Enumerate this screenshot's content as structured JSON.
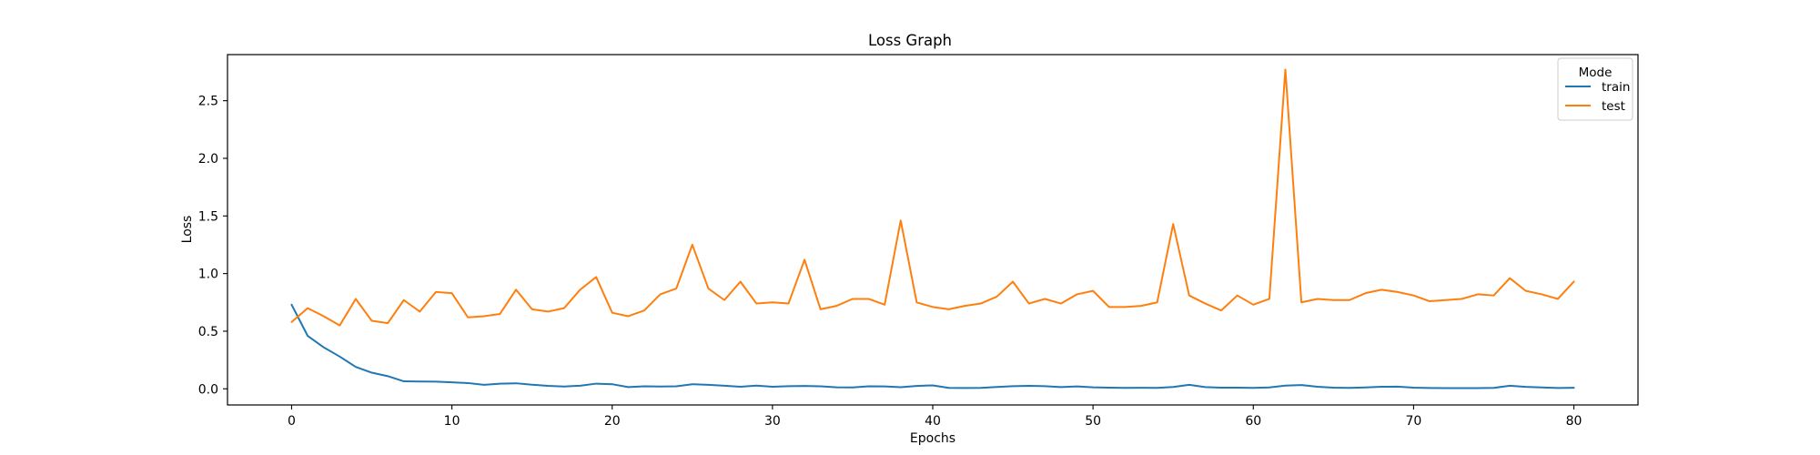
{
  "chart_data": {
    "type": "line",
    "title": "Loss Graph",
    "xlabel": "Epochs",
    "ylabel": "Loss",
    "xlim": [
      -4,
      84
    ],
    "ylim": [
      -0.14,
      2.9
    ],
    "xticks": [
      0,
      10,
      20,
      30,
      40,
      50,
      60,
      70,
      80
    ],
    "xtick_labels": [
      "0",
      "10",
      "20",
      "30",
      "40",
      "50",
      "60",
      "70",
      "80"
    ],
    "yticks": [
      0.0,
      0.5,
      1.0,
      1.5,
      2.0,
      2.5
    ],
    "ytick_labels": [
      "0.0",
      "0.5",
      "1.0",
      "1.5",
      "2.0",
      "2.5"
    ],
    "grid": false,
    "legend": {
      "title": "Mode",
      "placement": "top-right"
    },
    "x": [
      0,
      1,
      2,
      3,
      4,
      5,
      6,
      7,
      8,
      9,
      10,
      11,
      12,
      13,
      14,
      15,
      16,
      17,
      18,
      19,
      20,
      21,
      22,
      23,
      24,
      25,
      26,
      27,
      28,
      29,
      30,
      31,
      32,
      33,
      34,
      35,
      36,
      37,
      38,
      39,
      40,
      41,
      42,
      43,
      44,
      45,
      46,
      47,
      48,
      49,
      50,
      51,
      52,
      53,
      54,
      55,
      56,
      57,
      58,
      59,
      60,
      61,
      62,
      63,
      64,
      65,
      66,
      67,
      68,
      69,
      70,
      71,
      72,
      73,
      74,
      75,
      76,
      77,
      78,
      79,
      80
    ],
    "series": [
      {
        "name": "train",
        "color": "#1f77b4",
        "values": [
          0.73,
          0.46,
          0.36,
          0.28,
          0.19,
          0.14,
          0.11,
          0.065,
          0.063,
          0.062,
          0.056,
          0.05,
          0.035,
          0.045,
          0.048,
          0.036,
          0.026,
          0.02,
          0.027,
          0.045,
          0.04,
          0.015,
          0.022,
          0.02,
          0.022,
          0.04,
          0.035,
          0.027,
          0.018,
          0.028,
          0.018,
          0.023,
          0.025,
          0.022,
          0.013,
          0.012,
          0.022,
          0.021,
          0.014,
          0.025,
          0.03,
          0.008,
          0.007,
          0.008,
          0.016,
          0.023,
          0.026,
          0.023,
          0.015,
          0.021,
          0.013,
          0.01,
          0.008,
          0.009,
          0.008,
          0.016,
          0.035,
          0.015,
          0.01,
          0.01,
          0.008,
          0.012,
          0.028,
          0.033,
          0.018,
          0.01,
          0.008,
          0.012,
          0.018,
          0.019,
          0.01,
          0.007,
          0.006,
          0.006,
          0.006,
          0.008,
          0.027,
          0.017,
          0.012,
          0.007,
          0.009
        ]
      },
      {
        "name": "test",
        "color": "#ff7f0e",
        "values": [
          0.58,
          0.7,
          0.63,
          0.55,
          0.78,
          0.59,
          0.57,
          0.77,
          0.67,
          0.84,
          0.83,
          0.62,
          0.63,
          0.65,
          0.86,
          0.69,
          0.67,
          0.7,
          0.86,
          0.97,
          0.66,
          0.63,
          0.68,
          0.82,
          0.87,
          1.25,
          0.87,
          0.77,
          0.93,
          0.74,
          0.75,
          0.74,
          1.12,
          0.69,
          0.72,
          0.78,
          0.78,
          0.73,
          1.46,
          0.75,
          0.71,
          0.69,
          0.72,
          0.74,
          0.8,
          0.93,
          0.74,
          0.78,
          0.74,
          0.82,
          0.85,
          0.71,
          0.71,
          0.72,
          0.75,
          1.43,
          0.81,
          0.74,
          0.68,
          0.81,
          0.73,
          0.78,
          2.77,
          0.75,
          0.78,
          0.77,
          0.77,
          0.83,
          0.86,
          0.84,
          0.81,
          0.76,
          0.77,
          0.78,
          0.82,
          0.81,
          0.96,
          0.85,
          0.82,
          0.78,
          0.93
        ]
      }
    ]
  }
}
